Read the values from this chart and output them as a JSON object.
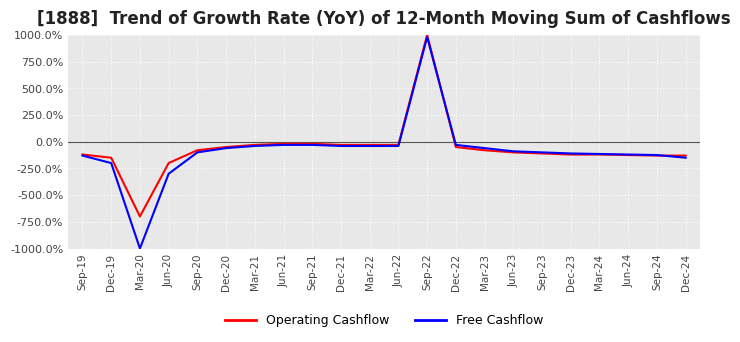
{
  "title": "[1888]  Trend of Growth Rate (YoY) of 12-Month Moving Sum of Cashflows",
  "title_fontsize": 12,
  "ylim": [
    -1000,
    1000
  ],
  "yticks": [
    -1000,
    -750,
    -500,
    -250,
    0,
    250,
    500,
    750,
    1000
  ],
  "ytick_labels": [
    "-1000.0%",
    "-750.0%",
    "-500.0%",
    "-250.0%",
    "0.0%",
    "250.0%",
    "500.0%",
    "750.0%",
    "1000.0%"
  ],
  "background_color": "#ffffff",
  "plot_background_color": "#e8e8e8",
  "grid_color": "#ffffff",
  "grid_linestyle": "dotted",
  "operating_color": "#ff0000",
  "free_color": "#0000ff",
  "legend_operating": "Operating Cashflow",
  "legend_free": "Free Cashflow",
  "x_dates": [
    "Sep-19",
    "Dec-19",
    "Mar-20",
    "Jun-20",
    "Sep-20",
    "Dec-20",
    "Mar-21",
    "Jun-21",
    "Sep-21",
    "Dec-21",
    "Mar-22",
    "Jun-22",
    "Sep-22",
    "Dec-22",
    "Mar-23",
    "Jun-23",
    "Sep-23",
    "Dec-23",
    "Mar-24",
    "Jun-24",
    "Sep-24",
    "Dec-24"
  ],
  "operating_values": [
    -120,
    -150,
    -700,
    -200,
    -80,
    -50,
    -30,
    -20,
    -20,
    -30,
    -30,
    -30,
    1000,
    -50,
    -80,
    -100,
    -110,
    -120,
    -120,
    -125,
    -130,
    -130
  ],
  "free_values": [
    -130,
    -200,
    -1000,
    -300,
    -100,
    -60,
    -40,
    -30,
    -30,
    -40,
    -40,
    -40,
    980,
    -30,
    -60,
    -90,
    -100,
    -110,
    -115,
    -120,
    -125,
    -150
  ]
}
